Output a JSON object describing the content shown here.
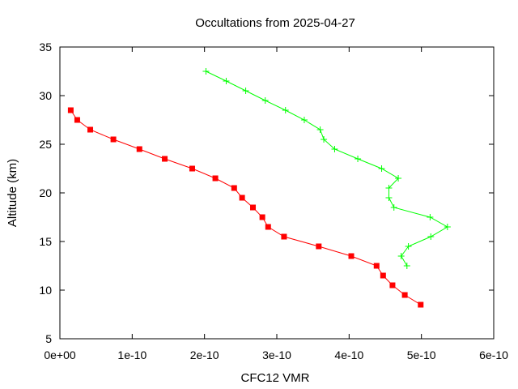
{
  "chart_data": {
    "type": "line",
    "title": "Occultations from 2025-04-27",
    "xlabel": "CFC12 VMR",
    "ylabel": "Altitude (km)",
    "xlim": [
      0,
      6e-10
    ],
    "ylim": [
      5,
      35
    ],
    "x_ticks": [
      0,
      1e-10,
      2e-10,
      3e-10,
      4e-10,
      5e-10,
      6e-10
    ],
    "x_tick_labels": [
      "0e+00",
      "1e-10",
      "2e-10",
      "3e-10",
      "4e-10",
      "5e-10",
      "6e-10"
    ],
    "y_ticks": [
      5,
      10,
      15,
      20,
      25,
      30,
      35
    ],
    "y_tick_labels": [
      "5",
      "10",
      "15",
      "20",
      "25",
      "30",
      "35"
    ],
    "grid": false,
    "legend": "none",
    "series": [
      {
        "color": "#ff0000",
        "marker": "filled-square",
        "points": [
          {
            "x": 1.5e-11,
            "y": 28.5
          },
          {
            "x": 2.4e-11,
            "y": 27.5
          },
          {
            "x": 4.2e-11,
            "y": 26.5
          },
          {
            "x": 7.4e-11,
            "y": 25.5
          },
          {
            "x": 1.1e-10,
            "y": 24.5
          },
          {
            "x": 1.45e-10,
            "y": 23.5
          },
          {
            "x": 1.83e-10,
            "y": 22.5
          },
          {
            "x": 2.15e-10,
            "y": 21.5
          },
          {
            "x": 2.41e-10,
            "y": 20.5
          },
          {
            "x": 2.52e-10,
            "y": 19.5
          },
          {
            "x": 2.67e-10,
            "y": 18.5
          },
          {
            "x": 2.8e-10,
            "y": 17.5
          },
          {
            "x": 2.88e-10,
            "y": 16.5
          },
          {
            "x": 3.1e-10,
            "y": 15.5
          },
          {
            "x": 3.58e-10,
            "y": 14.5
          },
          {
            "x": 4.03e-10,
            "y": 13.5
          },
          {
            "x": 4.38e-10,
            "y": 12.5
          },
          {
            "x": 4.47e-10,
            "y": 11.5
          },
          {
            "x": 4.6e-10,
            "y": 10.5
          },
          {
            "x": 4.77e-10,
            "y": 9.5
          },
          {
            "x": 4.99e-10,
            "y": 8.5
          }
        ]
      },
      {
        "color": "#00ff00",
        "marker": "plus",
        "points": [
          {
            "x": 2.02e-10,
            "y": 32.5
          },
          {
            "x": 2.3e-10,
            "y": 31.5
          },
          {
            "x": 2.57e-10,
            "y": 30.5
          },
          {
            "x": 2.84e-10,
            "y": 29.5
          },
          {
            "x": 3.12e-10,
            "y": 28.5
          },
          {
            "x": 3.38e-10,
            "y": 27.5
          },
          {
            "x": 3.6e-10,
            "y": 26.5
          },
          {
            "x": 3.65e-10,
            "y": 25.5
          },
          {
            "x": 3.8e-10,
            "y": 24.5
          },
          {
            "x": 4.12e-10,
            "y": 23.5
          },
          {
            "x": 4.45e-10,
            "y": 22.5
          },
          {
            "x": 4.68e-10,
            "y": 21.5
          },
          {
            "x": 4.55e-10,
            "y": 20.5
          },
          {
            "x": 4.55e-10,
            "y": 19.5
          },
          {
            "x": 4.62e-10,
            "y": 18.5
          },
          {
            "x": 5.12e-10,
            "y": 17.5
          },
          {
            "x": 5.36e-10,
            "y": 16.5
          },
          {
            "x": 5.13e-10,
            "y": 15.5
          },
          {
            "x": 4.82e-10,
            "y": 14.5
          },
          {
            "x": 4.72e-10,
            "y": 13.5
          },
          {
            "x": 4.8e-10,
            "y": 12.5
          }
        ]
      }
    ]
  }
}
